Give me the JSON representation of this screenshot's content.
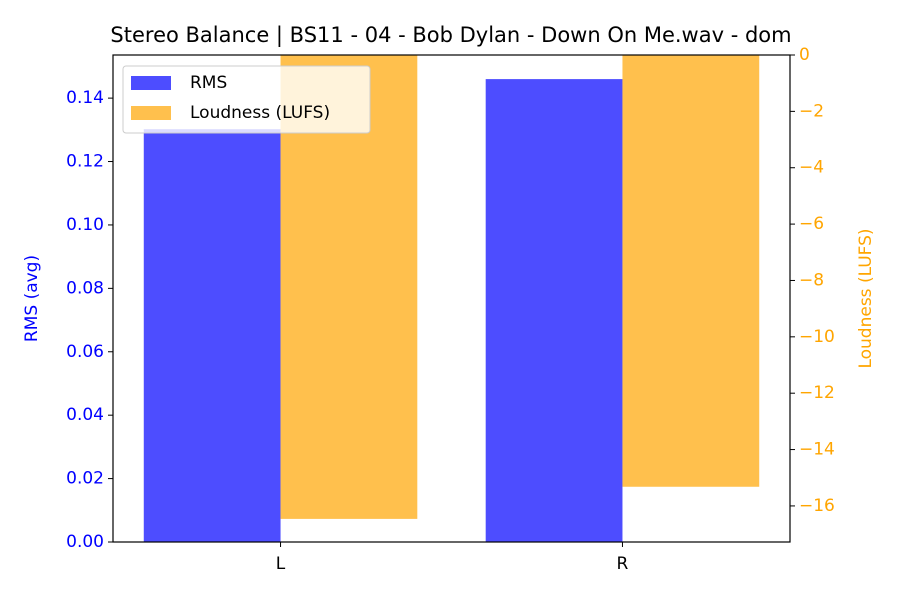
{
  "chart_data": {
    "type": "bar",
    "title": "Stereo Balance | BS11 - 04 - Bob Dylan - Down On Me.wav - dom",
    "categories": [
      "L",
      "R"
    ],
    "y_label": "RMS (avg)",
    "y2_label": "Loudness (LUFS)",
    "ylim": [
      0,
      0.1536
    ],
    "yticks": [
      {
        "value": 0,
        "label": "0.00"
      },
      0.02,
      0.04,
      0.06,
      0.08,
      {
        "value": 0.1,
        "label": "0.10"
      },
      0.12,
      0.14
    ],
    "y2lim": [
      -17.28,
      0
    ],
    "y2ticks": [
      0,
      {
        "value": -2,
        "label": "−2"
      },
      {
        "value": -4,
        "label": "−4"
      },
      {
        "value": -6,
        "label": "−6"
      },
      {
        "value": -8,
        "label": "−8"
      },
      {
        "value": -10,
        "label": "−10"
      },
      {
        "value": -12,
        "label": "−12"
      },
      {
        "value": -14,
        "label": "−14"
      },
      {
        "value": -16,
        "label": "−16"
      }
    ],
    "series": [
      {
        "name": "RMS",
        "color": "#4d4dff",
        "values": [
          0.1302,
          0.146
        ]
      },
      {
        "name": "Loudness (LUFS)",
        "color": "#ffc04d",
        "axis": "y2",
        "values": [
          -16.46,
          -15.32
        ]
      }
    ],
    "y_color": "#0000ff",
    "y2_color": "#ffa500",
    "legend": "upper left"
  }
}
